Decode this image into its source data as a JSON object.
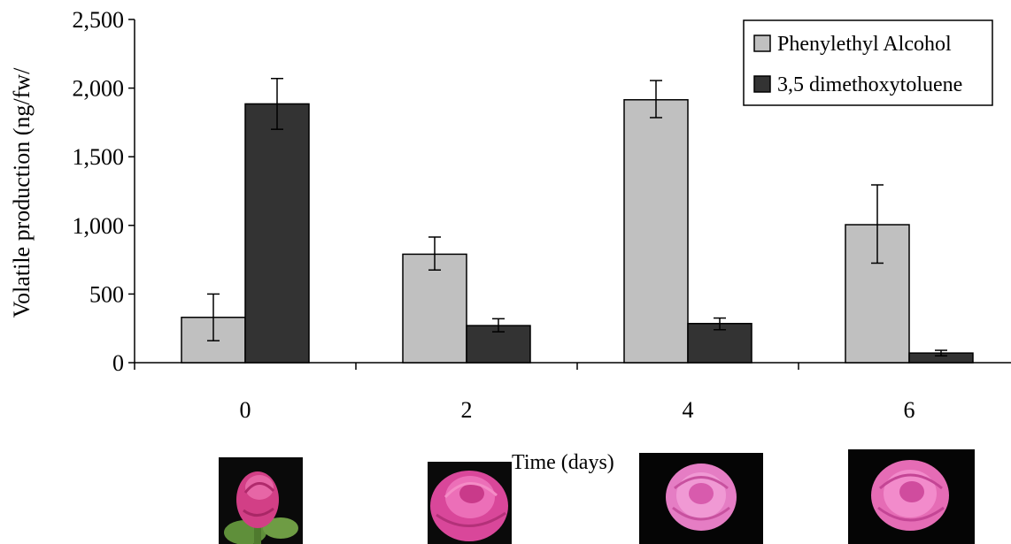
{
  "chart_data": {
    "type": "bar",
    "title": "",
    "xlabel": "Time (days)",
    "ylabel": "Volatile production (ng/fw/",
    "categories": [
      "0",
      "2",
      "4",
      "6"
    ],
    "ylim": [
      0,
      2500
    ],
    "yticks": [
      0,
      500,
      1000,
      1500,
      2000,
      2500
    ],
    "ytick_labels": [
      "0",
      "500",
      "1,000",
      "1,500",
      "2,000",
      "2,500"
    ],
    "grid": false,
    "legend_position": "top-right",
    "series": [
      {
        "name": "Phenylethyl Alcohol",
        "color": "#c0c0c0",
        "values": [
          330,
          790,
          1915,
          1005
        ],
        "err_low": [
          170,
          115,
          130,
          280
        ],
        "err_high": [
          170,
          125,
          140,
          290
        ]
      },
      {
        "name": "3,5 dimethoxytoluene",
        "color": "#333333",
        "values": [
          1885,
          270,
          285,
          70
        ],
        "err_low": [
          185,
          45,
          45,
          20
        ],
        "err_high": [
          185,
          50,
          40,
          20
        ]
      }
    ]
  },
  "photos": [
    {
      "name": "rose-photo-day-0",
      "description": "rose bud"
    },
    {
      "name": "rose-photo-day-2",
      "description": "opening rose"
    },
    {
      "name": "rose-photo-day-4",
      "description": "open rose"
    },
    {
      "name": "rose-photo-day-6",
      "description": "fully open rose"
    }
  ]
}
